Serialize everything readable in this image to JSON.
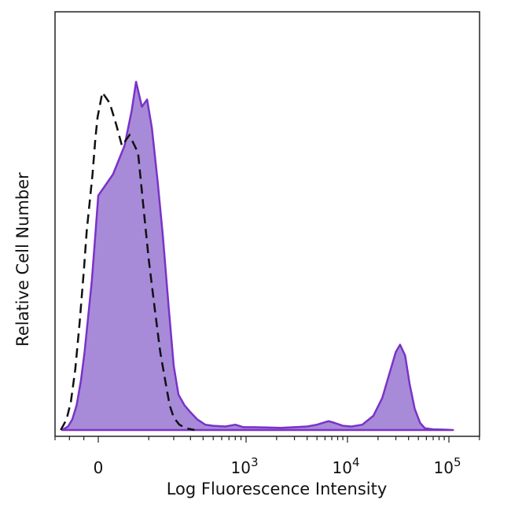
{
  "chart_data": {
    "type": "area",
    "xlabel": "Log Fluorescence Intensity",
    "ylabel": "Relative Cell Number",
    "x_scale": "biexponential (log above 10^3)",
    "x_ticks": [
      {
        "value": 0,
        "label": "0",
        "base": "0",
        "exp": ""
      },
      {
        "value": 1000,
        "label": "10^3",
        "base": "10",
        "exp": "3"
      },
      {
        "value": 10000,
        "label": "10^4",
        "base": "10",
        "exp": "4"
      },
      {
        "value": 100000,
        "label": "10^5",
        "base": "10",
        "exp": "5"
      }
    ],
    "xlim": [
      -300,
      250000
    ],
    "ylim": [
      0,
      100
    ],
    "grid": false,
    "legend": "none",
    "series": [
      {
        "style": "filled",
        "color": "#a78bd8",
        "edge_color": "#7a32c8",
        "points": [
          [
            -250,
            0
          ],
          [
            -210,
            1
          ],
          [
            -180,
            3
          ],
          [
            -150,
            7
          ],
          [
            -120,
            14
          ],
          [
            -95,
            22
          ],
          [
            -70,
            32
          ],
          [
            -45,
            42
          ],
          [
            -20,
            55
          ],
          [
            0,
            66
          ],
          [
            20,
            72
          ],
          [
            40,
            80
          ],
          [
            55,
            90
          ],
          [
            65,
            98
          ],
          [
            80,
            91
          ],
          [
            95,
            93
          ],
          [
            110,
            85
          ],
          [
            130,
            70
          ],
          [
            150,
            55
          ],
          [
            175,
            35
          ],
          [
            200,
            18
          ],
          [
            225,
            10
          ],
          [
            260,
            7
          ],
          [
            300,
            5
          ],
          [
            350,
            3
          ],
          [
            420,
            1.5
          ],
          [
            500,
            1.2
          ],
          [
            650,
            1.0
          ],
          [
            800,
            1.5
          ],
          [
            950,
            0.8
          ],
          [
            1200,
            0.8
          ],
          [
            1600,
            0.7
          ],
          [
            2200,
            0.6
          ],
          [
            3000,
            0.8
          ],
          [
            4000,
            1.0
          ],
          [
            5000,
            1.5
          ],
          [
            6500,
            2.5
          ],
          [
            7500,
            2.0
          ],
          [
            9000,
            1.2
          ],
          [
            11000,
            1.0
          ],
          [
            14000,
            1.5
          ],
          [
            18000,
            4
          ],
          [
            22000,
            9
          ],
          [
            26000,
            16
          ],
          [
            30000,
            22
          ],
          [
            33000,
            24
          ],
          [
            37000,
            21
          ],
          [
            41000,
            13
          ],
          [
            46000,
            6
          ],
          [
            52000,
            2
          ],
          [
            58000,
            0.5
          ],
          [
            70000,
            0.2
          ],
          [
            90000,
            0.1
          ],
          [
            110000,
            0
          ]
        ]
      },
      {
        "style": "dashed",
        "color": "#111111",
        "points": [
          [
            -260,
            0
          ],
          [
            -220,
            3
          ],
          [
            -190,
            8
          ],
          [
            -160,
            17
          ],
          [
            -130,
            30
          ],
          [
            -100,
            45
          ],
          [
            -80,
            56
          ],
          [
            -60,
            64
          ],
          [
            -40,
            72
          ],
          [
            -20,
            82
          ],
          [
            -5,
            88
          ],
          [
            5,
            95
          ],
          [
            15,
            92
          ],
          [
            25,
            86
          ],
          [
            35,
            80
          ],
          [
            50,
            83
          ],
          [
            70,
            78
          ],
          [
            85,
            62
          ],
          [
            100,
            48
          ],
          [
            120,
            34
          ],
          [
            140,
            22
          ],
          [
            160,
            14
          ],
          [
            180,
            7
          ],
          [
            200,
            3.5
          ],
          [
            230,
            1.5
          ],
          [
            270,
            0.5
          ],
          [
            330,
            0
          ]
        ]
      }
    ]
  }
}
